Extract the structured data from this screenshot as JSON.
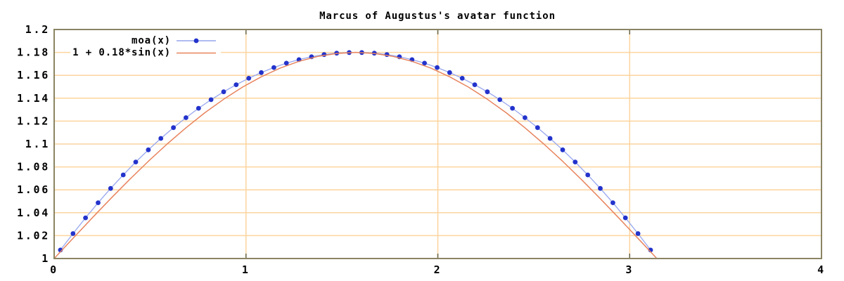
{
  "page": {
    "background": "#ffffff"
  },
  "chart_data": {
    "type": "line",
    "title": "Marcus of Augustus's avatar function",
    "xlabel": "",
    "ylabel": "",
    "xlim": [
      0,
      4
    ],
    "ylim": [
      1,
      1.2
    ],
    "grid": true,
    "legend_position": "top-left-inside",
    "x_ticks": [
      {
        "v": 0,
        "label": "0"
      },
      {
        "v": 1,
        "label": "1"
      },
      {
        "v": 2,
        "label": "2"
      },
      {
        "v": 3,
        "label": "3"
      },
      {
        "v": 4,
        "label": "4"
      }
    ],
    "y_ticks": [
      {
        "v": 1.0,
        "label": "1"
      },
      {
        "v": 1.02,
        "label": "1.02"
      },
      {
        "v": 1.04,
        "label": "1.04"
      },
      {
        "v": 1.06,
        "label": "1.06"
      },
      {
        "v": 1.08,
        "label": "1.08"
      },
      {
        "v": 1.1,
        "label": "1.1"
      },
      {
        "v": 1.12,
        "label": "1.12"
      },
      {
        "v": 1.14,
        "label": "1.14"
      },
      {
        "v": 1.16,
        "label": "1.16"
      },
      {
        "v": 1.18,
        "label": "1.18"
      },
      {
        "v": 1.2,
        "label": "1.2"
      }
    ],
    "colors": {
      "background": "#ffffff",
      "border": "#8b8464",
      "grid": "#fcd49e",
      "tick_mark": "#6e6a4a",
      "text": "#000000"
    },
    "series": [
      {
        "key": "moa",
        "name": "moa(x)",
        "style": "linespoints",
        "line_color": "#96a6ee",
        "point_color": "#2333cc",
        "points": [
          [
            0.0327,
            1.0074
          ],
          [
            0.0982,
            1.0218
          ],
          [
            0.1636,
            1.0355
          ],
          [
            0.2291,
            1.0487
          ],
          [
            0.2945,
            1.0612
          ],
          [
            0.36,
            1.073
          ],
          [
            0.4254,
            1.0843
          ],
          [
            0.4909,
            1.0949
          ],
          [
            0.5563,
            1.1049
          ],
          [
            0.6218,
            1.1143
          ],
          [
            0.6872,
            1.123
          ],
          [
            0.7527,
            1.1312
          ],
          [
            0.8181,
            1.1387
          ],
          [
            0.8836,
            1.1456
          ],
          [
            0.949,
            1.1518
          ],
          [
            1.0145,
            1.1574
          ],
          [
            1.0799,
            1.1624
          ],
          [
            1.1454,
            1.1668
          ],
          [
            1.2108,
            1.1706
          ],
          [
            1.2763,
            1.1737
          ],
          [
            1.3417,
            1.1762
          ],
          [
            1.4072,
            1.1781
          ],
          [
            1.4726,
            1.1793
          ],
          [
            1.5381,
            1.1799
          ],
          [
            1.6035,
            1.1799
          ],
          [
            1.669,
            1.1793
          ],
          [
            1.7344,
            1.1781
          ],
          [
            1.7999,
            1.1762
          ],
          [
            1.8653,
            1.1737
          ],
          [
            1.9308,
            1.1706
          ],
          [
            1.9962,
            1.1668
          ],
          [
            2.0617,
            1.1624
          ],
          [
            2.1271,
            1.1574
          ],
          [
            2.1926,
            1.1518
          ],
          [
            2.258,
            1.1456
          ],
          [
            2.3235,
            1.1387
          ],
          [
            2.3889,
            1.1312
          ],
          [
            2.4544,
            1.123
          ],
          [
            2.5198,
            1.1143
          ],
          [
            2.5853,
            1.1049
          ],
          [
            2.6507,
            1.0949
          ],
          [
            2.7162,
            1.0843
          ],
          [
            2.7816,
            1.073
          ],
          [
            2.8471,
            1.0612
          ],
          [
            2.9125,
            1.0487
          ],
          [
            2.978,
            1.0355
          ],
          [
            3.0434,
            1.0218
          ],
          [
            3.1089,
            1.0074
          ]
        ]
      },
      {
        "key": "sin",
        "name": "1 + 0.18*sin(x)",
        "style": "line",
        "line_color": "#e8845e",
        "points": [
          [
            0.0,
            1.0
          ],
          [
            0.0982,
            1.0176
          ],
          [
            0.1963,
            1.0351
          ],
          [
            0.2945,
            1.0523
          ],
          [
            0.3927,
            1.0689
          ],
          [
            0.4909,
            1.0849
          ],
          [
            0.589,
            1.1
          ],
          [
            0.6872,
            1.1142
          ],
          [
            0.7854,
            1.1273
          ],
          [
            0.8836,
            1.1391
          ],
          [
            0.9817,
            1.1497
          ],
          [
            1.0799,
            1.1587
          ],
          [
            1.1781,
            1.1663
          ],
          [
            1.2763,
            1.1722
          ],
          [
            1.3744,
            1.1765
          ],
          [
            1.4726,
            1.1791
          ],
          [
            1.5708,
            1.18
          ],
          [
            1.669,
            1.1791
          ],
          [
            1.7671,
            1.1765
          ],
          [
            1.8653,
            1.1722
          ],
          [
            1.9635,
            1.1663
          ],
          [
            2.0617,
            1.1587
          ],
          [
            2.1598,
            1.1497
          ],
          [
            2.258,
            1.1391
          ],
          [
            2.3562,
            1.1273
          ],
          [
            2.4544,
            1.1142
          ],
          [
            2.5525,
            1.1
          ],
          [
            2.6507,
            1.0849
          ],
          [
            2.7489,
            1.0689
          ],
          [
            2.8471,
            1.0523
          ],
          [
            2.9452,
            1.0351
          ],
          [
            3.0434,
            1.0176
          ],
          [
            3.1416,
            1.0
          ]
        ]
      }
    ]
  }
}
